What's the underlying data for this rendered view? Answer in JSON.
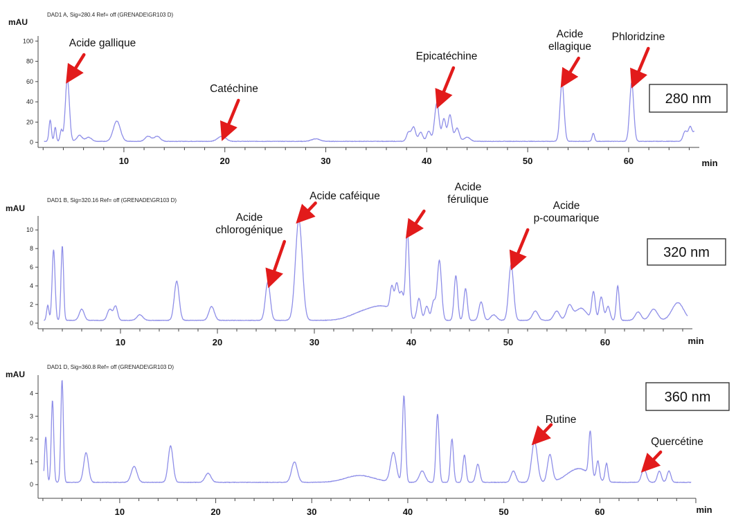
{
  "chart_data": [
    {
      "type": "line",
      "header": "DAD1 A, Sig=280.4 Ref= off (GRENADE\\GR103 D)",
      "ylabel": "mAU",
      "xlabel": "min",
      "wavelength": "280 nm",
      "color": "#8e8ee8",
      "xlim": [
        1.5,
        67
      ],
      "ylim": [
        -5,
        105
      ],
      "xticks": [
        10,
        20,
        30,
        40,
        50,
        60
      ],
      "yticks": [
        0,
        20,
        40,
        60,
        80,
        100
      ],
      "baseline": 1,
      "peaks": [
        {
          "x": 2.7,
          "h": 21,
          "w": 0.12
        },
        {
          "x": 3.2,
          "h": 14,
          "w": 0.1
        },
        {
          "x": 3.8,
          "h": 11,
          "w": 0.12
        },
        {
          "x": 4.4,
          "h": 62,
          "w": 0.2
        },
        {
          "x": 5.6,
          "h": 6,
          "w": 0.25
        },
        {
          "x": 6.5,
          "h": 4,
          "w": 0.3
        },
        {
          "x": 9.3,
          "h": 20,
          "w": 0.35
        },
        {
          "x": 12.4,
          "h": 5,
          "w": 0.3
        },
        {
          "x": 13.3,
          "h": 5,
          "w": 0.3
        },
        {
          "x": 19.7,
          "h": 5,
          "w": 0.4
        },
        {
          "x": 29.0,
          "h": 2.5,
          "w": 0.4
        },
        {
          "x": 38.2,
          "h": 9,
          "w": 0.2
        },
        {
          "x": 38.7,
          "h": 14,
          "w": 0.2
        },
        {
          "x": 39.4,
          "h": 9,
          "w": 0.2
        },
        {
          "x": 40.2,
          "h": 10,
          "w": 0.2
        },
        {
          "x": 41.0,
          "h": 38,
          "w": 0.22
        },
        {
          "x": 41.7,
          "h": 22,
          "w": 0.18
        },
        {
          "x": 42.3,
          "h": 26,
          "w": 0.2
        },
        {
          "x": 43.0,
          "h": 13,
          "w": 0.22
        },
        {
          "x": 44.0,
          "h": 4,
          "w": 0.3
        },
        {
          "x": 53.4,
          "h": 58,
          "w": 0.2
        },
        {
          "x": 56.5,
          "h": 8,
          "w": 0.12
        },
        {
          "x": 60.3,
          "h": 58,
          "w": 0.2
        },
        {
          "x": 65.6,
          "h": 10,
          "w": 0.2
        },
        {
          "x": 66.1,
          "h": 14,
          "w": 0.18
        },
        {
          "x": 66.6,
          "h": 10,
          "w": 0.2
        }
      ],
      "annotations": [
        {
          "lines": [
            "Acide gallique"
          ],
          "x": 4.4,
          "y": 62
        },
        {
          "lines": [
            "Catéchine"
          ],
          "x": 19.7,
          "y": 6
        },
        {
          "lines": [
            "Epicatéchine"
          ],
          "x": 41.0,
          "y": 38
        },
        {
          "lines": [
            "Acide",
            "ellagique"
          ],
          "x": 53.4,
          "y": 58
        },
        {
          "lines": [
            "Phloridzine"
          ],
          "x": 60.3,
          "y": 58
        }
      ]
    },
    {
      "type": "line",
      "header": "DAD1 B, Sig=320.16 Ref= off (GRENADE\\GR103 D)",
      "ylabel": "mAU",
      "xlabel": "min",
      "wavelength": "320 nm",
      "color": "#8e8ee8",
      "xlim": [
        1.5,
        69
      ],
      "ylim": [
        -0.6,
        11.5
      ],
      "xticks": [
        10,
        20,
        30,
        40,
        50,
        60
      ],
      "yticks": [
        0,
        2,
        4,
        6,
        8,
        10
      ],
      "baseline": 0.3,
      "peaks": [
        {
          "x": 2.5,
          "h": 1.6,
          "w": 0.12
        },
        {
          "x": 3.1,
          "h": 7.6,
          "w": 0.15
        },
        {
          "x": 4.0,
          "h": 8.0,
          "w": 0.13
        },
        {
          "x": 6.0,
          "h": 1.2,
          "w": 0.25
        },
        {
          "x": 8.9,
          "h": 1.2,
          "w": 0.25
        },
        {
          "x": 9.5,
          "h": 1.5,
          "w": 0.2
        },
        {
          "x": 12.0,
          "h": 0.6,
          "w": 0.3
        },
        {
          "x": 15.8,
          "h": 4.2,
          "w": 0.25
        },
        {
          "x": 19.4,
          "h": 1.5,
          "w": 0.28
        },
        {
          "x": 25.2,
          "h": 4.1,
          "w": 0.25
        },
        {
          "x": 28.4,
          "h": 10.8,
          "w": 0.35
        },
        {
          "x": 34.5,
          "h": 0.5,
          "w": 1.2
        },
        {
          "x": 37.0,
          "h": 1.5,
          "w": 1.5
        },
        {
          "x": 38.0,
          "h": 2.5,
          "w": 0.18
        },
        {
          "x": 38.5,
          "h": 3.0,
          "w": 0.18
        },
        {
          "x": 39.0,
          "h": 2.4,
          "w": 0.2
        },
        {
          "x": 39.6,
          "h": 9.3,
          "w": 0.18
        },
        {
          "x": 40.8,
          "h": 2.3,
          "w": 0.2
        },
        {
          "x": 41.6,
          "h": 1.5,
          "w": 0.2
        },
        {
          "x": 42.3,
          "h": 2.0,
          "w": 0.2
        },
        {
          "x": 42.9,
          "h": 6.4,
          "w": 0.22
        },
        {
          "x": 44.6,
          "h": 4.8,
          "w": 0.18
        },
        {
          "x": 45.6,
          "h": 3.4,
          "w": 0.18
        },
        {
          "x": 47.2,
          "h": 2.0,
          "w": 0.22
        },
        {
          "x": 48.5,
          "h": 0.6,
          "w": 0.3
        },
        {
          "x": 50.3,
          "h": 6.0,
          "w": 0.25
        },
        {
          "x": 52.8,
          "h": 1.0,
          "w": 0.3
        },
        {
          "x": 55.0,
          "h": 1.0,
          "w": 0.3
        },
        {
          "x": 56.3,
          "h": 1.5,
          "w": 0.3
        },
        {
          "x": 57.5,
          "h": 1.3,
          "w": 0.6
        },
        {
          "x": 58.8,
          "h": 3.0,
          "w": 0.18
        },
        {
          "x": 59.6,
          "h": 2.5,
          "w": 0.2
        },
        {
          "x": 60.3,
          "h": 1.5,
          "w": 0.2
        },
        {
          "x": 61.3,
          "h": 3.7,
          "w": 0.15
        },
        {
          "x": 63.4,
          "h": 0.9,
          "w": 0.3
        },
        {
          "x": 65.0,
          "h": 1.2,
          "w": 0.4
        },
        {
          "x": 67.5,
          "h": 1.9,
          "w": 0.6
        }
      ],
      "annotations": [
        {
          "lines": [
            "Acide",
            "chlorogénique"
          ],
          "x": 25.2,
          "y": 4.1
        },
        {
          "lines": [
            "Acide caféique"
          ],
          "x": 28.4,
          "y": 10.8
        },
        {
          "lines": [
            "Acide",
            "férulique"
          ],
          "x": 39.6,
          "y": 9.3
        },
        {
          "lines": [
            "Acide",
            "p-coumarique"
          ],
          "x": 50.3,
          "y": 6.0
        }
      ]
    },
    {
      "type": "line",
      "header": "DAD1 D, Sig=360.8 Ref= off (GRENADE\\GR103 D)",
      "ylabel": "mAU",
      "xlabel": "min",
      "wavelength": "360 nm",
      "color": "#8e8ee8",
      "xlim": [
        1.5,
        70
      ],
      "ylim": [
        -0.6,
        4.8
      ],
      "xticks": [
        10,
        20,
        30,
        40,
        50,
        60
      ],
      "yticks": [
        0,
        1,
        2,
        3,
        4
      ],
      "baseline": 0.1,
      "peaks": [
        {
          "x": 2.3,
          "h": 2.0,
          "w": 0.12
        },
        {
          "x": 3.0,
          "h": 3.6,
          "w": 0.13
        },
        {
          "x": 4.0,
          "h": 4.5,
          "w": 0.13
        },
        {
          "x": 6.5,
          "h": 1.3,
          "w": 0.25
        },
        {
          "x": 11.5,
          "h": 0.7,
          "w": 0.3
        },
        {
          "x": 15.3,
          "h": 1.6,
          "w": 0.25
        },
        {
          "x": 19.2,
          "h": 0.4,
          "w": 0.3
        },
        {
          "x": 28.2,
          "h": 0.9,
          "w": 0.3
        },
        {
          "x": 35.0,
          "h": 0.3,
          "w": 1.5
        },
        {
          "x": 38.5,
          "h": 1.3,
          "w": 0.3
        },
        {
          "x": 39.6,
          "h": 3.8,
          "w": 0.16
        },
        {
          "x": 41.5,
          "h": 0.5,
          "w": 0.3
        },
        {
          "x": 43.1,
          "h": 3.0,
          "w": 0.16
        },
        {
          "x": 44.6,
          "h": 1.9,
          "w": 0.16
        },
        {
          "x": 45.9,
          "h": 1.2,
          "w": 0.16
        },
        {
          "x": 47.3,
          "h": 0.8,
          "w": 0.2
        },
        {
          "x": 51.0,
          "h": 0.5,
          "w": 0.25
        },
        {
          "x": 53.2,
          "h": 1.8,
          "w": 0.3
        },
        {
          "x": 54.8,
          "h": 1.2,
          "w": 0.25
        },
        {
          "x": 57.8,
          "h": 0.6,
          "w": 1.2
        },
        {
          "x": 59.0,
          "h": 1.9,
          "w": 0.15
        },
        {
          "x": 59.8,
          "h": 0.8,
          "w": 0.15
        },
        {
          "x": 60.7,
          "h": 0.8,
          "w": 0.15
        },
        {
          "x": 64.6,
          "h": 0.6,
          "w": 0.25
        },
        {
          "x": 66.2,
          "h": 0.5,
          "w": 0.2
        },
        {
          "x": 67.2,
          "h": 0.5,
          "w": 0.2
        }
      ],
      "annotations": [
        {
          "lines": [
            "Rutine"
          ],
          "x": 53.2,
          "y": 1.8
        },
        {
          "lines": [
            "Quercétine"
          ],
          "x": 64.6,
          "y": 0.6
        }
      ]
    }
  ]
}
